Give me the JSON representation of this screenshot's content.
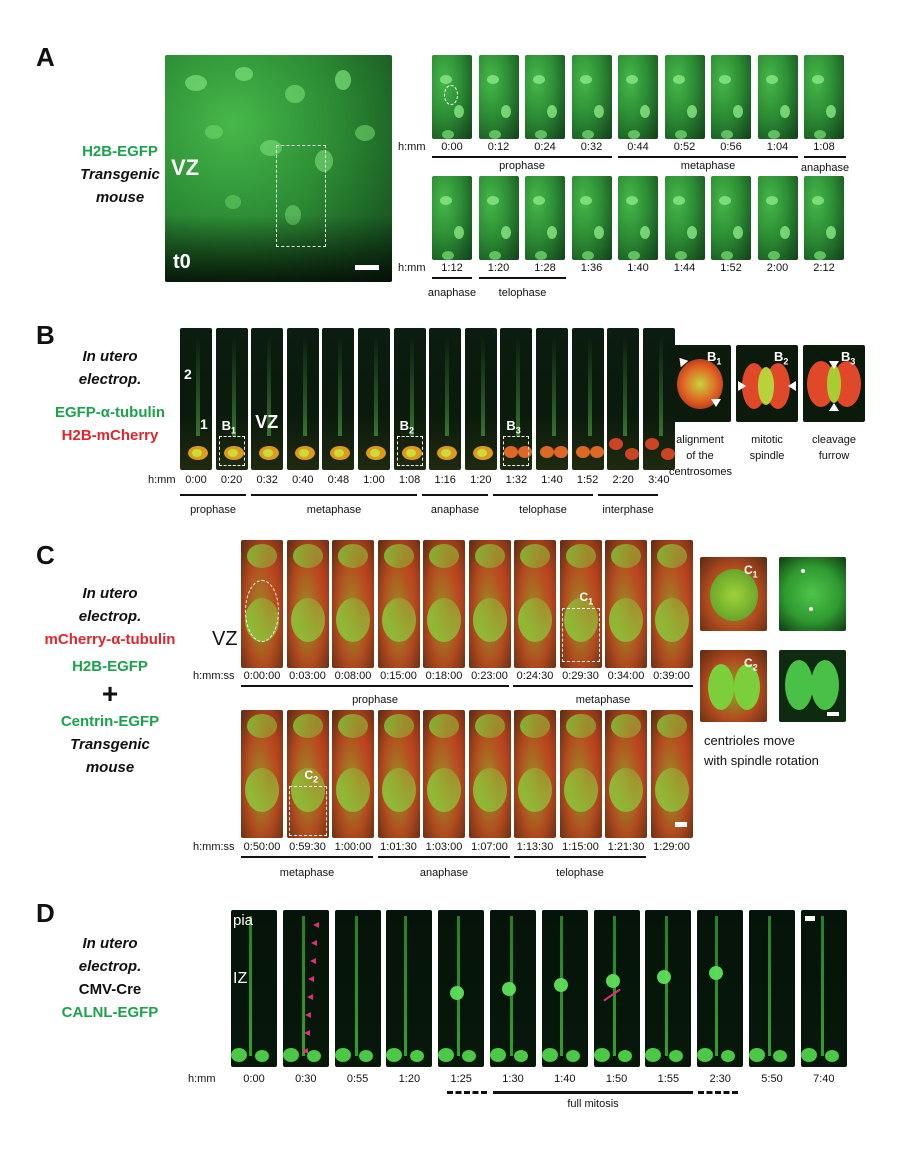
{
  "panels": {
    "A": {
      "label": "A",
      "condition": [
        "H2B-EGFP",
        "Transgenic",
        "mouse"
      ],
      "overview_labels": {
        "region": "VZ",
        "time": "t0"
      },
      "unit": "h:mm",
      "row1_times": [
        "0:00",
        "0:12",
        "0:24",
        "0:32",
        "0:44",
        "0:52",
        "0:56",
        "1:04",
        "1:08"
      ],
      "row2_times": [
        "1:12",
        "1:20",
        "1:28",
        "1:36",
        "1:40",
        "1:44",
        "1:52",
        "2:00",
        "2:12"
      ],
      "row1_phases": [
        "prophase",
        "metaphase",
        "anaphase"
      ],
      "row2_phases": [
        "anaphase",
        "telophase"
      ]
    },
    "B": {
      "label": "B",
      "condition": [
        "In utero",
        "electrop.",
        "EGFP-α-tubulin",
        "H2B-mCherry"
      ],
      "frame_labels": {
        "cell2": "2",
        "cell1": "1",
        "region": "VZ",
        "b1": "B",
        "b2": "B",
        "b3": "B",
        "s1": "1",
        "s2": "2",
        "s3": "3"
      },
      "unit": "h:mm",
      "times": [
        "0:00",
        "0:20",
        "0:32",
        "0:40",
        "0:48",
        "1:00",
        "1:08",
        "1:16",
        "1:20",
        "1:32",
        "1:40",
        "1:52",
        "2:20",
        "3:40"
      ],
      "phases": [
        "prophase",
        "metaphase",
        "anaphase",
        "telophase",
        "interphase"
      ],
      "insets": [
        {
          "id": "B",
          "sub": "1",
          "caption": [
            "alignment",
            "of the",
            "centrosomes"
          ]
        },
        {
          "id": "B",
          "sub": "2",
          "caption": [
            "mitotic",
            "spindle"
          ]
        },
        {
          "id": "B",
          "sub": "3",
          "caption": [
            "cleavage",
            "furrow"
          ]
        }
      ]
    },
    "C": {
      "label": "C",
      "condition": [
        "In utero",
        "electrop.",
        "mCherry-α-tubulin",
        "H2B-EGFP",
        "+",
        "Centrin-EGFP",
        "Transgenic",
        "mouse"
      ],
      "region": "VZ",
      "unit": "h:mm:ss",
      "row1_times": [
        "0:00:00",
        "0:03:00",
        "0:08:00",
        "0:15:00",
        "0:18:00",
        "0:23:00",
        "0:24:30",
        "0:29:30",
        "0:34:00",
        "0:39:00"
      ],
      "row2_times": [
        "0:50:00",
        "0:59:30",
        "1:00:00",
        "1:01:30",
        "1:03:00",
        "1:07:00",
        "1:13:30",
        "1:15:00",
        "1:21:30",
        "1:29:00"
      ],
      "row1_phases": [
        "prophase",
        "metaphase"
      ],
      "row2_phases": [
        "metaphase",
        "anaphase",
        "telophase"
      ],
      "inset_labels": {
        "c": "C",
        "s1": "1",
        "s2": "2"
      },
      "inset_caption": [
        "centrioles move",
        "with spindle rotation"
      ]
    },
    "D": {
      "label": "D",
      "condition": [
        "In utero",
        "electrop.",
        "CMV-Cre",
        "CALNL-EGFP"
      ],
      "frame_labels": {
        "top": "pia",
        "mid": "IZ"
      },
      "unit": "h:mm",
      "times": [
        "0:00",
        "0:30",
        "0:55",
        "1:20",
        "1:25",
        "1:30",
        "1:40",
        "1:50",
        "1:55",
        "2:30",
        "5:50",
        "7:40"
      ],
      "phase": "full mitosis"
    }
  }
}
